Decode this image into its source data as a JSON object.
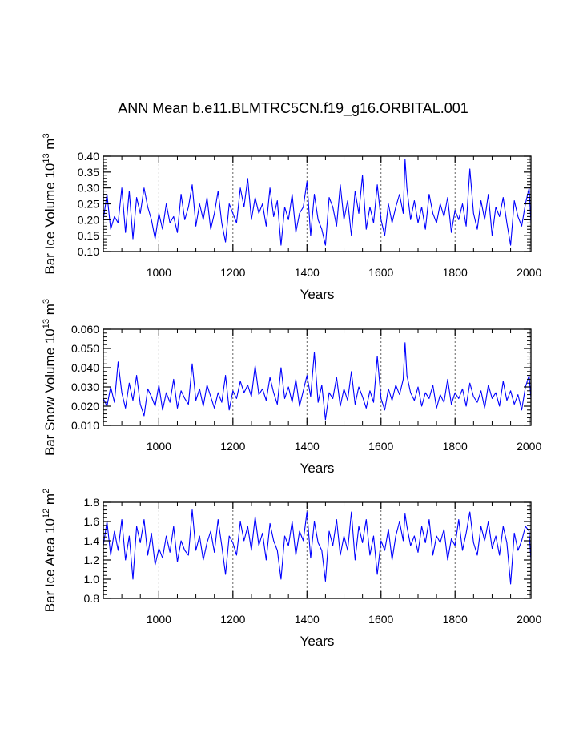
{
  "title": "ANN Mean b.e11.BLMTRC5CN.f19_g16.ORBITAL.001",
  "colors": {
    "series": "#0000ff",
    "axis": "#000000",
    "grid": "#555555"
  },
  "chart_data": [
    {
      "type": "line",
      "name": "Bar Ice Volume",
      "ylabel": {
        "base": "Bar Ice Volume 10",
        "exp": "13",
        "unit": " m",
        "unit_exp": "3"
      },
      "xlabel": "Years",
      "xlim": [
        850,
        2005
      ],
      "ylim": [
        0.1,
        0.4
      ],
      "xticks": [
        1000,
        1200,
        1400,
        1600,
        1800,
        2000
      ],
      "xtick_labels": [
        "1000",
        "1200",
        "1400",
        "1600",
        "1800",
        "2000"
      ],
      "yticks": [
        0.1,
        0.15,
        0.2,
        0.25,
        0.3,
        0.35,
        0.4
      ],
      "ytick_labels": [
        "0.10",
        "0.15",
        "0.20",
        "0.25",
        "0.30",
        "0.35",
        "0.40"
      ],
      "grid_x": true,
      "series": [
        {
          "name": "Bar Ice Volume",
          "x": [
            850,
            860,
            870,
            880,
            890,
            900,
            910,
            920,
            930,
            940,
            950,
            960,
            970,
            980,
            990,
            1000,
            1010,
            1020,
            1030,
            1040,
            1050,
            1060,
            1070,
            1080,
            1090,
            1100,
            1110,
            1120,
            1130,
            1140,
            1150,
            1160,
            1170,
            1180,
            1190,
            1200,
            1210,
            1220,
            1230,
            1240,
            1250,
            1260,
            1270,
            1280,
            1290,
            1300,
            1310,
            1320,
            1330,
            1340,
            1350,
            1360,
            1370,
            1380,
            1390,
            1400,
            1410,
            1420,
            1430,
            1440,
            1450,
            1460,
            1470,
            1480,
            1490,
            1500,
            1510,
            1520,
            1530,
            1540,
            1550,
            1560,
            1570,
            1580,
            1590,
            1600,
            1610,
            1620,
            1630,
            1640,
            1650,
            1660,
            1665,
            1670,
            1680,
            1690,
            1700,
            1710,
            1720,
            1730,
            1740,
            1750,
            1760,
            1770,
            1780,
            1790,
            1800,
            1810,
            1820,
            1830,
            1840,
            1850,
            1860,
            1870,
            1880,
            1890,
            1900,
            1910,
            1920,
            1930,
            1940,
            1950,
            1960,
            1970,
            1980,
            1990,
            2000,
            2005
          ],
          "y": [
            0.2,
            0.28,
            0.17,
            0.21,
            0.19,
            0.3,
            0.16,
            0.29,
            0.14,
            0.27,
            0.22,
            0.3,
            0.24,
            0.2,
            0.14,
            0.22,
            0.17,
            0.25,
            0.19,
            0.21,
            0.16,
            0.28,
            0.2,
            0.24,
            0.31,
            0.18,
            0.25,
            0.2,
            0.27,
            0.17,
            0.22,
            0.29,
            0.19,
            0.13,
            0.25,
            0.22,
            0.19,
            0.3,
            0.24,
            0.33,
            0.2,
            0.27,
            0.22,
            0.25,
            0.18,
            0.3,
            0.21,
            0.26,
            0.12,
            0.24,
            0.2,
            0.28,
            0.16,
            0.22,
            0.24,
            0.32,
            0.15,
            0.28,
            0.2,
            0.17,
            0.12,
            0.27,
            0.24,
            0.18,
            0.31,
            0.2,
            0.26,
            0.15,
            0.29,
            0.22,
            0.34,
            0.17,
            0.24,
            0.19,
            0.31,
            0.2,
            0.15,
            0.25,
            0.19,
            0.24,
            0.28,
            0.22,
            0.39,
            0.3,
            0.2,
            0.26,
            0.19,
            0.24,
            0.17,
            0.28,
            0.22,
            0.19,
            0.25,
            0.21,
            0.27,
            0.16,
            0.23,
            0.2,
            0.25,
            0.18,
            0.36,
            0.22,
            0.17,
            0.26,
            0.2,
            0.28,
            0.15,
            0.24,
            0.21,
            0.27,
            0.19,
            0.12,
            0.26,
            0.21,
            0.18,
            0.25,
            0.3,
            0.19
          ]
        }
      ]
    },
    {
      "type": "line",
      "name": "Bar Snow Volume",
      "ylabel": {
        "base": "Bar Snow Volume 10",
        "exp": "13",
        "unit": " m",
        "unit_exp": "3"
      },
      "xlabel": "Years",
      "xlim": [
        850,
        2005
      ],
      "ylim": [
        0.01,
        0.06
      ],
      "xticks": [
        1000,
        1200,
        1400,
        1600,
        1800,
        2000
      ],
      "xtick_labels": [
        "1000",
        "1200",
        "1400",
        "1600",
        "1800",
        "2000"
      ],
      "yticks": [
        0.01,
        0.02,
        0.03,
        0.04,
        0.05,
        0.06
      ],
      "ytick_labels": [
        "0.010",
        "0.020",
        "0.030",
        "0.040",
        "0.050",
        "0.060"
      ],
      "grid_x": true,
      "series": [
        {
          "name": "Bar Snow Volume",
          "x": [
            850,
            860,
            870,
            880,
            890,
            900,
            910,
            920,
            930,
            940,
            950,
            960,
            970,
            980,
            990,
            1000,
            1010,
            1020,
            1030,
            1040,
            1050,
            1060,
            1070,
            1080,
            1090,
            1100,
            1110,
            1120,
            1130,
            1140,
            1150,
            1160,
            1170,
            1180,
            1190,
            1200,
            1210,
            1220,
            1230,
            1240,
            1250,
            1260,
            1270,
            1280,
            1290,
            1300,
            1310,
            1320,
            1330,
            1340,
            1350,
            1360,
            1370,
            1380,
            1390,
            1400,
            1410,
            1420,
            1430,
            1440,
            1450,
            1460,
            1470,
            1480,
            1490,
            1500,
            1510,
            1520,
            1530,
            1540,
            1550,
            1560,
            1570,
            1580,
            1590,
            1600,
            1610,
            1620,
            1630,
            1640,
            1650,
            1660,
            1665,
            1670,
            1680,
            1690,
            1700,
            1710,
            1720,
            1730,
            1740,
            1750,
            1760,
            1770,
            1780,
            1790,
            1800,
            1810,
            1820,
            1830,
            1840,
            1850,
            1860,
            1870,
            1880,
            1890,
            1900,
            1910,
            1920,
            1930,
            1940,
            1950,
            1960,
            1970,
            1980,
            1990,
            2000,
            2005
          ],
          "y": [
            0.024,
            0.02,
            0.03,
            0.022,
            0.043,
            0.027,
            0.019,
            0.032,
            0.023,
            0.036,
            0.021,
            0.015,
            0.029,
            0.025,
            0.02,
            0.031,
            0.018,
            0.027,
            0.022,
            0.034,
            0.019,
            0.028,
            0.024,
            0.021,
            0.042,
            0.023,
            0.029,
            0.02,
            0.031,
            0.025,
            0.019,
            0.027,
            0.022,
            0.036,
            0.018,
            0.028,
            0.024,
            0.033,
            0.027,
            0.031,
            0.025,
            0.041,
            0.026,
            0.029,
            0.023,
            0.035,
            0.027,
            0.021,
            0.04,
            0.024,
            0.03,
            0.022,
            0.034,
            0.02,
            0.028,
            0.036,
            0.025,
            0.048,
            0.022,
            0.031,
            0.013,
            0.027,
            0.024,
            0.035,
            0.02,
            0.029,
            0.023,
            0.038,
            0.021,
            0.03,
            0.025,
            0.019,
            0.028,
            0.022,
            0.046,
            0.024,
            0.018,
            0.029,
            0.023,
            0.031,
            0.026,
            0.034,
            0.053,
            0.036,
            0.027,
            0.023,
            0.03,
            0.02,
            0.027,
            0.024,
            0.031,
            0.019,
            0.026,
            0.022,
            0.034,
            0.021,
            0.027,
            0.024,
            0.029,
            0.02,
            0.032,
            0.025,
            0.022,
            0.028,
            0.019,
            0.031,
            0.024,
            0.027,
            0.02,
            0.033,
            0.023,
            0.028,
            0.021,
            0.026,
            0.018,
            0.03,
            0.036,
            0.024
          ]
        }
      ]
    },
    {
      "type": "line",
      "name": "Bar Ice Area",
      "ylabel": {
        "base": "Bar Ice Area 10",
        "exp": "12",
        "unit": " m",
        "unit_exp": "2"
      },
      "xlabel": "Years",
      "xlim": [
        850,
        2005
      ],
      "ylim": [
        0.8,
        1.8
      ],
      "xticks": [
        1000,
        1200,
        1400,
        1600,
        1800,
        2000
      ],
      "xtick_labels": [
        "1000",
        "1200",
        "1400",
        "1600",
        "1800",
        "2000"
      ],
      "yticks": [
        0.8,
        1.0,
        1.2,
        1.4,
        1.6,
        1.8
      ],
      "ytick_labels": [
        "0.8",
        "1.0",
        "1.2",
        "1.4",
        "1.6",
        "1.8"
      ],
      "grid_x": true,
      "series": [
        {
          "name": "Bar Ice Area",
          "x": [
            850,
            860,
            870,
            880,
            890,
            900,
            910,
            920,
            930,
            940,
            950,
            960,
            970,
            980,
            990,
            1000,
            1010,
            1020,
            1030,
            1040,
            1050,
            1060,
            1070,
            1080,
            1090,
            1100,
            1110,
            1120,
            1130,
            1140,
            1150,
            1160,
            1170,
            1180,
            1190,
            1200,
            1210,
            1220,
            1230,
            1240,
            1250,
            1260,
            1270,
            1280,
            1290,
            1300,
            1310,
            1320,
            1330,
            1340,
            1350,
            1360,
            1370,
            1380,
            1390,
            1400,
            1410,
            1420,
            1430,
            1440,
            1450,
            1460,
            1470,
            1480,
            1490,
            1500,
            1510,
            1520,
            1530,
            1540,
            1550,
            1560,
            1570,
            1580,
            1590,
            1600,
            1610,
            1620,
            1630,
            1640,
            1650,
            1660,
            1665,
            1670,
            1680,
            1690,
            1700,
            1710,
            1720,
            1730,
            1740,
            1750,
            1760,
            1770,
            1780,
            1790,
            1800,
            1810,
            1820,
            1830,
            1840,
            1850,
            1860,
            1870,
            1880,
            1890,
            1900,
            1910,
            1920,
            1930,
            1940,
            1950,
            1960,
            1970,
            1980,
            1990,
            2000,
            2005
          ],
          "y": [
            1.35,
            1.6,
            1.25,
            1.5,
            1.3,
            1.62,
            1.2,
            1.45,
            1.0,
            1.55,
            1.38,
            1.62,
            1.25,
            1.48,
            1.15,
            1.32,
            1.22,
            1.45,
            1.28,
            1.55,
            1.18,
            1.4,
            1.3,
            1.25,
            1.72,
            1.3,
            1.45,
            1.2,
            1.38,
            1.5,
            1.28,
            1.62,
            1.35,
            1.05,
            1.45,
            1.38,
            1.25,
            1.6,
            1.4,
            1.55,
            1.3,
            1.65,
            1.35,
            1.48,
            1.2,
            1.58,
            1.4,
            1.3,
            1.0,
            1.45,
            1.35,
            1.6,
            1.25,
            1.5,
            1.4,
            1.7,
            1.22,
            1.6,
            1.38,
            1.3,
            0.98,
            1.5,
            1.35,
            1.62,
            1.25,
            1.45,
            1.3,
            1.7,
            1.2,
            1.55,
            1.38,
            1.62,
            1.25,
            1.45,
            1.05,
            1.4,
            1.3,
            1.52,
            1.2,
            1.45,
            1.6,
            1.4,
            1.68,
            1.55,
            1.35,
            1.45,
            1.28,
            1.55,
            1.38,
            1.62,
            1.25,
            1.45,
            1.38,
            1.52,
            1.2,
            1.42,
            1.35,
            1.62,
            1.3,
            1.48,
            1.7,
            1.38,
            1.25,
            1.55,
            1.4,
            1.6,
            1.32,
            1.45,
            1.25,
            1.55,
            1.38,
            0.95,
            1.48,
            1.3,
            1.4,
            1.55,
            1.5,
            1.2
          ]
        }
      ]
    }
  ]
}
